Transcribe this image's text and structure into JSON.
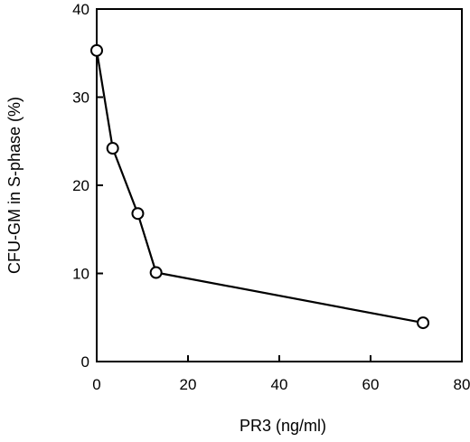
{
  "chart_data": {
    "type": "line",
    "xlabel": "PR3 (ng/ml)",
    "ylabel": "CFU-GM in S-phase (%)",
    "xlim": [
      0,
      80
    ],
    "ylim": [
      0,
      40
    ],
    "xticks": [
      0,
      20,
      40,
      60,
      80
    ],
    "yticks": [
      0,
      10,
      20,
      30,
      40
    ],
    "grid": false,
    "series": [
      {
        "x": [
          0,
          3.5,
          9,
          13,
          71.5
        ],
        "y": [
          35.3,
          24.2,
          16.8,
          10.1,
          4.4
        ]
      }
    ]
  }
}
